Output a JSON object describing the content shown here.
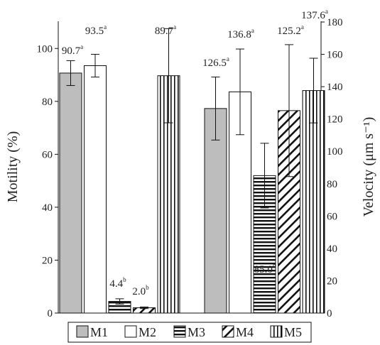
{
  "chart_data": {
    "type": "bar",
    "ylabel": "Motility (%)",
    "y2label": "Velocity (μm s⁻¹)",
    "ylim": [
      0,
      110
    ],
    "y2lim": [
      0,
      180
    ],
    "yticks": [
      "0",
      "20",
      "40",
      "60",
      "80",
      "100"
    ],
    "y2ticks": [
      "0",
      "20",
      "40",
      "60",
      "80",
      "100",
      "120",
      "140",
      "160",
      "180"
    ],
    "legend_position": "bottom",
    "groups": [
      {
        "measure": "Motility",
        "axis": "left",
        "bars": [
          {
            "series": "M1",
            "value": 90.7,
            "err": 4.7,
            "label": "90.7",
            "sup": "a"
          },
          {
            "series": "M2",
            "value": 93.5,
            "err": 4.3,
            "label": "93.5",
            "sup": "a"
          },
          {
            "series": "M3",
            "value": 4.4,
            "err": 1.0,
            "label": "4.4",
            "sup": "b"
          },
          {
            "series": "M4",
            "value": 2.0,
            "err": 0.3,
            "label": "2.0",
            "sup": "b"
          },
          {
            "series": "M5",
            "value": 89.7,
            "err": 17.8,
            "label": "89.7",
            "sup": "a"
          }
        ]
      },
      {
        "measure": "Velocity",
        "axis": "right",
        "bars": [
          {
            "series": "M1",
            "value": 126.5,
            "err": 19.5,
            "label": "126.5",
            "sup": "a"
          },
          {
            "series": "M2",
            "value": 136.8,
            "err": 26.5,
            "label": "136.8",
            "sup": "a"
          },
          {
            "series": "M3",
            "value": 85.0,
            "err": 20.0,
            "label": "85.0",
            "sup": "b"
          },
          {
            "series": "M4",
            "value": 125.2,
            "err": 40.8,
            "label": "125.2",
            "sup": "a"
          },
          {
            "series": "M5",
            "value": 137.6,
            "err": 20.0,
            "label": "137.6",
            "sup": "a"
          }
        ]
      }
    ],
    "series": [
      {
        "name": "M1",
        "fill": "#bdbdbd",
        "pattern": "solid"
      },
      {
        "name": "M2",
        "fill": "#ffffff",
        "pattern": "solid"
      },
      {
        "name": "M3",
        "fill": "#ffffff",
        "pattern": "horizontal-lines"
      },
      {
        "name": "M4",
        "fill": "#ffffff",
        "pattern": "diagonal-lines"
      },
      {
        "name": "M5",
        "fill": "#ffffff",
        "pattern": "vertical-lines"
      }
    ]
  }
}
